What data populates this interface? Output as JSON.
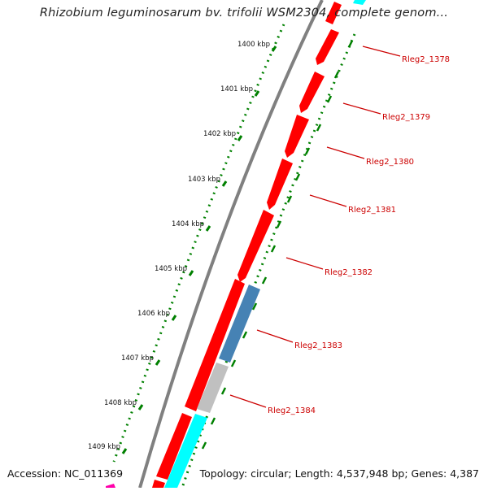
{
  "title": "Rhizobium leguminosarum bv. trifolii WSM2304, complete genom...",
  "accession": "Accession: NC_011369",
  "topology": "Topology: circular; Length: 4,537,948 bp; Genes: 4,387",
  "ruler": [
    "1400 kbp",
    "1401 kbp",
    "1402 kbp",
    "1403 kbp",
    "1404 kbp",
    "1405 kbp",
    "1406 kbp",
    "1407 kbp",
    "1408 kbp",
    "1409 kbp"
  ],
  "genes": [
    {
      "name": "Rleg2_1378",
      "color": "#ff0000"
    },
    {
      "name": "Rleg2_1379",
      "color": "#ff0000"
    },
    {
      "name": "Rleg2_1380",
      "color": "#ff0000"
    },
    {
      "name": "Rleg2_1381",
      "color": "#ff0000"
    },
    {
      "name": "Rleg2_1382",
      "color": "#ff0000"
    },
    {
      "name": "Rleg2_1383",
      "color": "#4682b4"
    },
    {
      "name": "Rleg2_1384",
      "color": "#c0c0c0"
    }
  ],
  "colors": {
    "cds": "#ff0000",
    "rna": "#4682b4",
    "other": "#c0c0c0",
    "cyan": "#00ffff",
    "backbone": "#808080",
    "dots": "#008000",
    "label": "#cc0000",
    "magenta": "#ff00aa"
  }
}
